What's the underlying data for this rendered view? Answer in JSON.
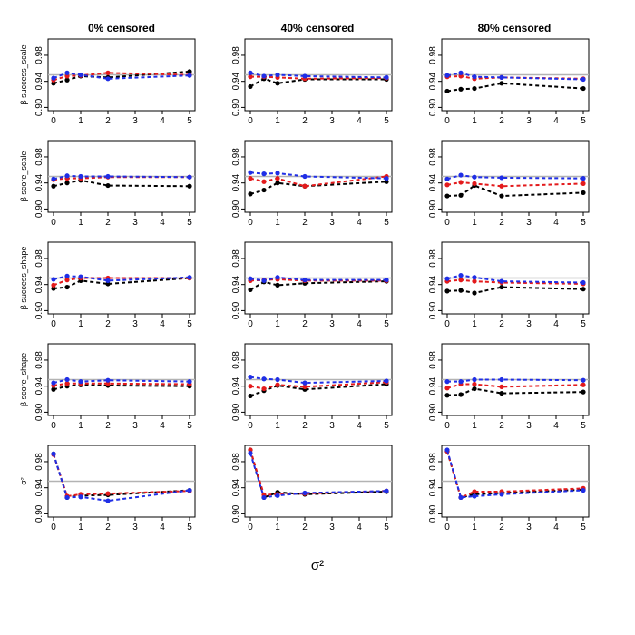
{
  "chart_data": {
    "type": "line",
    "layout": "grid-5x3",
    "columns": [
      "0% censored",
      "40% censored",
      "80% censored"
    ],
    "row_labels": [
      "β success_scale",
      "β score_scale",
      "β success_shape",
      "β score_shape",
      "σ²"
    ],
    "xlabel": "σ²",
    "x": [
      0,
      0.5,
      1,
      2,
      5
    ],
    "xticks": [
      0,
      1,
      2,
      3,
      4,
      5
    ],
    "yticks": [
      "0.90",
      "0.94",
      "0.98"
    ],
    "ylim": [
      0.895,
      1.005
    ],
    "reference_line": 0.95,
    "series_colors": {
      "black": "#000000",
      "red": "#e31a1c",
      "blue": "#1f2ee6",
      "reference": "#b3b3b3"
    },
    "panels": [
      [
        {
          "black": [
            0.937,
            0.942,
            0.948,
            0.946,
            0.955
          ],
          "red": [
            0.942,
            0.948,
            0.949,
            0.953,
            0.95
          ],
          "blue": [
            0.945,
            0.953,
            0.95,
            0.944,
            0.949
          ]
        },
        {
          "black": [
            0.935,
            0.94,
            0.944,
            0.936,
            0.935
          ],
          "red": [
            0.945,
            0.947,
            0.947,
            0.949,
            0.949
          ],
          "blue": [
            0.946,
            0.951,
            0.95,
            0.95,
            0.949
          ]
        },
        {
          "black": [
            0.934,
            0.936,
            0.946,
            0.941,
            0.95
          ],
          "red": [
            0.939,
            0.947,
            0.95,
            0.95,
            0.95
          ],
          "blue": [
            0.948,
            0.953,
            0.952,
            0.946,
            0.951
          ]
        },
        {
          "black": [
            0.935,
            0.94,
            0.942,
            0.941,
            0.94
          ],
          "red": [
            0.941,
            0.944,
            0.944,
            0.944,
            0.943
          ],
          "blue": [
            0.945,
            0.95,
            0.947,
            0.949,
            0.947
          ]
        },
        {
          "black": [
            0.992,
            0.925,
            0.928,
            0.929,
            0.936
          ],
          "red": [
            0.991,
            0.927,
            0.93,
            0.931,
            0.935
          ],
          "blue": [
            0.992,
            0.925,
            0.926,
            0.92,
            0.936
          ]
        }
      ],
      [
        {
          "black": [
            0.932,
            0.944,
            0.937,
            0.943,
            0.943
          ],
          "red": [
            0.947,
            0.947,
            0.946,
            0.944,
            0.945
          ],
          "blue": [
            0.953,
            0.948,
            0.95,
            0.948,
            0.946
          ]
        },
        {
          "black": [
            0.923,
            0.929,
            0.94,
            0.935,
            0.942
          ],
          "red": [
            0.947,
            0.942,
            0.947,
            0.935,
            0.95
          ],
          "blue": [
            0.956,
            0.954,
            0.955,
            0.95,
            0.947
          ]
        },
        {
          "black": [
            0.932,
            0.944,
            0.939,
            0.942,
            0.945
          ],
          "red": [
            0.946,
            0.947,
            0.948,
            0.946,
            0.946
          ],
          "blue": [
            0.949,
            0.946,
            0.951,
            0.947,
            0.947
          ]
        },
        {
          "black": [
            0.925,
            0.933,
            0.941,
            0.935,
            0.943
          ],
          "red": [
            0.94,
            0.936,
            0.942,
            0.939,
            0.946
          ],
          "blue": [
            0.954,
            0.951,
            0.95,
            0.945,
            0.948
          ]
        },
        {
          "black": [
            0.998,
            0.925,
            0.933,
            0.93,
            0.934
          ],
          "red": [
            0.998,
            0.929,
            0.93,
            0.931,
            0.935
          ],
          "blue": [
            0.993,
            0.925,
            0.928,
            0.932,
            0.935
          ]
        }
      ],
      [
        {
          "black": [
            0.925,
            0.928,
            0.929,
            0.937,
            0.929
          ],
          "red": [
            0.947,
            0.948,
            0.944,
            0.946,
            0.944
          ],
          "blue": [
            0.949,
            0.953,
            0.947,
            0.946,
            0.943
          ]
        },
        {
          "black": [
            0.92,
            0.921,
            0.936,
            0.92,
            0.925
          ],
          "red": [
            0.937,
            0.941,
            0.939,
            0.935,
            0.939
          ],
          "blue": [
            0.946,
            0.952,
            0.949,
            0.948,
            0.947
          ]
        },
        {
          "black": [
            0.93,
            0.931,
            0.927,
            0.936,
            0.933
          ],
          "red": [
            0.945,
            0.947,
            0.945,
            0.943,
            0.941
          ],
          "blue": [
            0.949,
            0.954,
            0.951,
            0.945,
            0.943
          ]
        },
        {
          "black": [
            0.926,
            0.927,
            0.936,
            0.929,
            0.931
          ],
          "red": [
            0.937,
            0.943,
            0.943,
            0.939,
            0.942
          ],
          "blue": [
            0.947,
            0.947,
            0.95,
            0.95,
            0.949
          ]
        },
        {
          "black": [
            0.996,
            0.925,
            0.93,
            0.932,
            0.937
          ],
          "red": [
            0.996,
            0.925,
            0.934,
            0.934,
            0.939
          ],
          "blue": [
            0.998,
            0.925,
            0.927,
            0.93,
            0.936
          ]
        }
      ]
    ]
  }
}
